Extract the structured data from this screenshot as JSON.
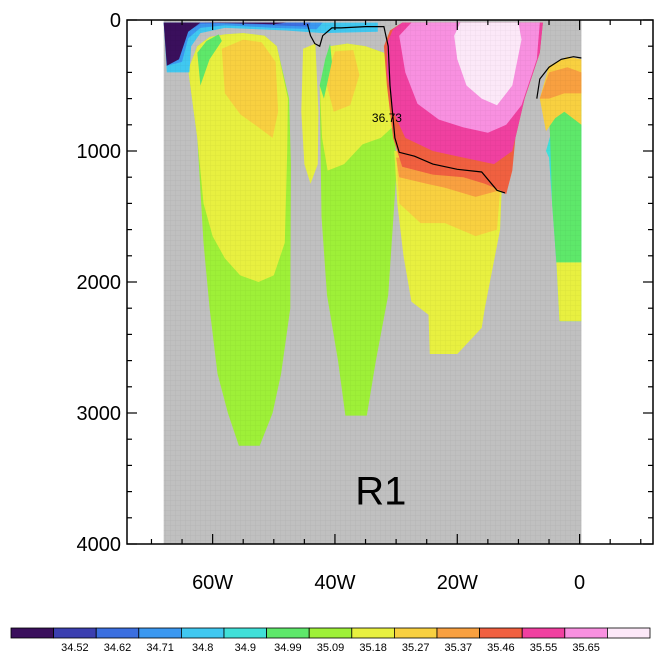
{
  "chart_data": {
    "type": "heatmap",
    "title": "",
    "xlabel": "",
    "ylabel": "",
    "panel_label": "R1",
    "x_range_deg": [
      -74,
      12
    ],
    "y_range_m": [
      0,
      4000
    ],
    "y_inverted": true,
    "x_ticks": [
      {
        "value": -60,
        "label": "60W"
      },
      {
        "value": -40,
        "label": "40W"
      },
      {
        "value": -20,
        "label": "20W"
      },
      {
        "value": 0,
        "label": "0"
      }
    ],
    "y_ticks": [
      {
        "value": 0,
        "label": "0"
      },
      {
        "value": 1000,
        "label": "1000"
      },
      {
        "value": 2000,
        "label": "2000"
      },
      {
        "value": 3000,
        "label": "3000"
      },
      {
        "value": 4000,
        "label": "4000"
      }
    ],
    "missing_color": "#c0c0c0",
    "contour": {
      "value": 36.73,
      "label": "36.73"
    },
    "colorbar": {
      "levels": [
        "34.52",
        "34.62",
        "34.71",
        "34.8",
        "34.9",
        "34.99",
        "35.09",
        "35.18",
        "35.27",
        "35.37",
        "35.46",
        "35.55",
        "35.65"
      ],
      "colors": [
        "#3a0f5c",
        "#3b3fb0",
        "#3b6fe0",
        "#3b98f0",
        "#40c8f0",
        "#40e0d8",
        "#5ee86a",
        "#9ef038",
        "#e8f040",
        "#f8d040",
        "#f8a040",
        "#f06040",
        "#f040a0",
        "#f890e0",
        "#fce8f8"
      ]
    }
  }
}
